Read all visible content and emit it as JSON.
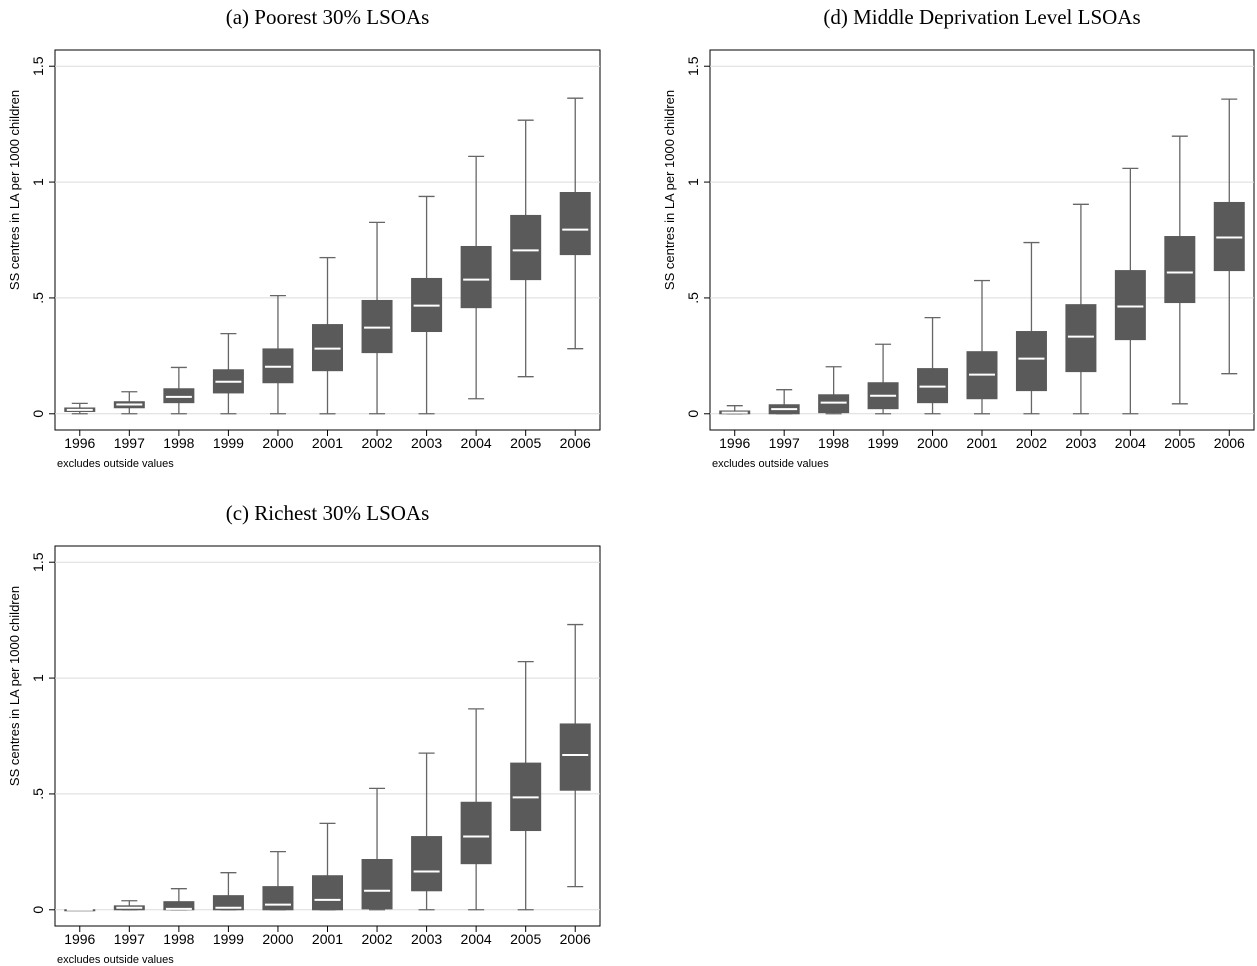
{
  "chart_data": [
    {
      "type": "box",
      "title": "(a) Poorest 30% LSOAs",
      "ylabel": "SS centres in LA per 1000 children",
      "note": "excludes outside values",
      "categories": [
        "1996",
        "1997",
        "1998",
        "1999",
        "2000",
        "2001",
        "2002",
        "2003",
        "2004",
        "2005",
        "2006"
      ],
      "whisker_low": [
        0,
        0,
        0,
        0,
        0,
        0,
        0,
        0,
        0.065,
        0.16,
        0.281
      ],
      "q1": [
        0.01,
        0.026,
        0.048,
        0.09,
        0.134,
        0.186,
        0.264,
        0.355,
        0.458,
        0.579,
        0.687
      ],
      "median": [
        0.017,
        0.04,
        0.073,
        0.138,
        0.203,
        0.281,
        0.372,
        0.467,
        0.579,
        0.705,
        0.795
      ],
      "q3": [
        0.025,
        0.052,
        0.108,
        0.19,
        0.28,
        0.385,
        0.489,
        0.584,
        0.722,
        0.856,
        0.955
      ],
      "whisker_high": [
        0.045,
        0.095,
        0.2,
        0.346,
        0.51,
        0.674,
        0.826,
        0.938,
        1.111,
        1.267,
        1.362
      ],
      "color": "#5a5a5a",
      "ylim": [
        -0.07,
        1.57
      ],
      "yticks": [
        0,
        {
          "value": 0.5,
          "label": ".5"
        },
        1,
        1.5
      ],
      "grid": true
    },
    {
      "type": "box",
      "title": "(d) Middle Deprivation Level LSOAs",
      "ylabel": "SS centres in LA per 1000 children",
      "note": "excludes outside values",
      "categories": [
        "1996",
        "1997",
        "1998",
        "1999",
        "2000",
        "2001",
        "2002",
        "2003",
        "2004",
        "2005",
        "2006"
      ],
      "whisker_low": [
        0,
        0,
        0,
        0,
        0,
        0,
        0,
        0,
        0,
        0.043,
        0.173
      ],
      "q1": [
        0,
        0,
        0.005,
        0.022,
        0.048,
        0.065,
        0.1,
        0.182,
        0.32,
        0.48,
        0.618
      ],
      "median": [
        0.005,
        0.02,
        0.048,
        0.078,
        0.117,
        0.169,
        0.238,
        0.333,
        0.463,
        0.61,
        0.761
      ],
      "q3": [
        0.012,
        0.039,
        0.082,
        0.134,
        0.195,
        0.268,
        0.355,
        0.471,
        0.618,
        0.765,
        0.912
      ],
      "whisker_high": [
        0.035,
        0.104,
        0.203,
        0.3,
        0.415,
        0.575,
        0.739,
        0.904,
        1.059,
        1.198,
        1.358
      ],
      "color": "#5a5a5a",
      "ylim": [
        -0.07,
        1.57
      ],
      "yticks": [
        0,
        {
          "value": 0.5,
          "label": ".5"
        },
        1,
        1.5
      ],
      "grid": true
    },
    {
      "type": "box",
      "title": "(c) Richest 30% LSOAs",
      "ylabel": "SS centres in LA per 1000 children",
      "note": "excludes outside values",
      "categories": [
        "1996",
        "1997",
        "1998",
        "1999",
        "2000",
        "2001",
        "2002",
        "2003",
        "2004",
        "2005",
        "2006"
      ],
      "whisker_low": [
        0,
        0,
        0,
        0,
        0,
        0,
        0,
        0,
        0,
        0,
        0.1
      ],
      "q1": [
        0,
        0,
        0,
        0,
        0,
        0,
        0.004,
        0.082,
        0.199,
        0.342,
        0.516
      ],
      "median": [
        0,
        0.009,
        0.004,
        0.009,
        0.022,
        0.043,
        0.082,
        0.165,
        0.316,
        0.485,
        0.668
      ],
      "q3": [
        0,
        0.017,
        0.035,
        0.061,
        0.1,
        0.147,
        0.217,
        0.316,
        0.464,
        0.633,
        0.802
      ],
      "whisker_high": [
        0,
        0.039,
        0.091,
        0.16,
        0.251,
        0.373,
        0.524,
        0.676,
        0.867,
        1.071,
        1.231
      ],
      "color": "#5a5a5a",
      "ylim": [
        -0.07,
        1.57
      ],
      "yticks": [
        0,
        {
          "value": 0.5,
          "label": ".5"
        },
        1,
        1.5
      ],
      "grid": true
    }
  ]
}
